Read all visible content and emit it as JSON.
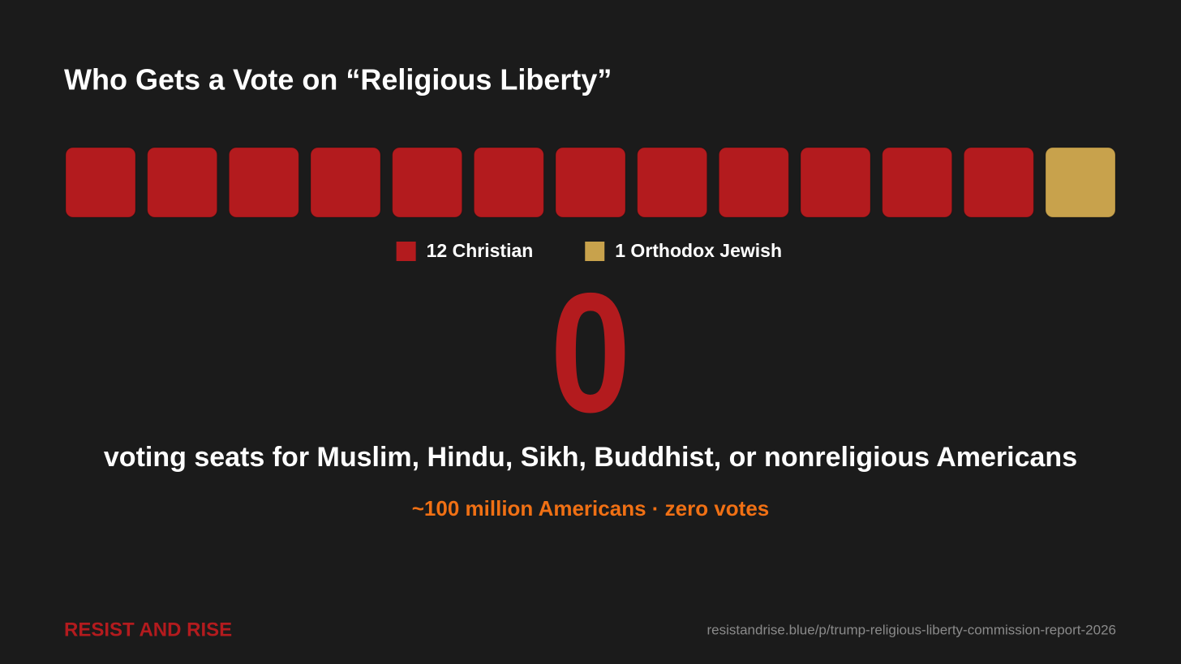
{
  "chart_data": {
    "type": "waffle",
    "title": "Who Gets a Vote on “Religious Liberty”",
    "series": [
      {
        "name": "12 Christian",
        "color": "#b31b1e",
        "values": [
          12
        ]
      },
      {
        "name": "1 Orthodox Jewish",
        "color": "#c8a24c",
        "values": [
          1
        ]
      }
    ],
    "big_number": 0,
    "caption": "voting seats for Muslim, Hindu, Sikh, Buddhist, or nonreligious Americans",
    "subcaption": "~100 million Americans · zero votes"
  },
  "footer": {
    "brand": "RESIST AND RISE",
    "url": "resistandrise.blue/p/trump-religious-liberty-commission-report-2026"
  }
}
